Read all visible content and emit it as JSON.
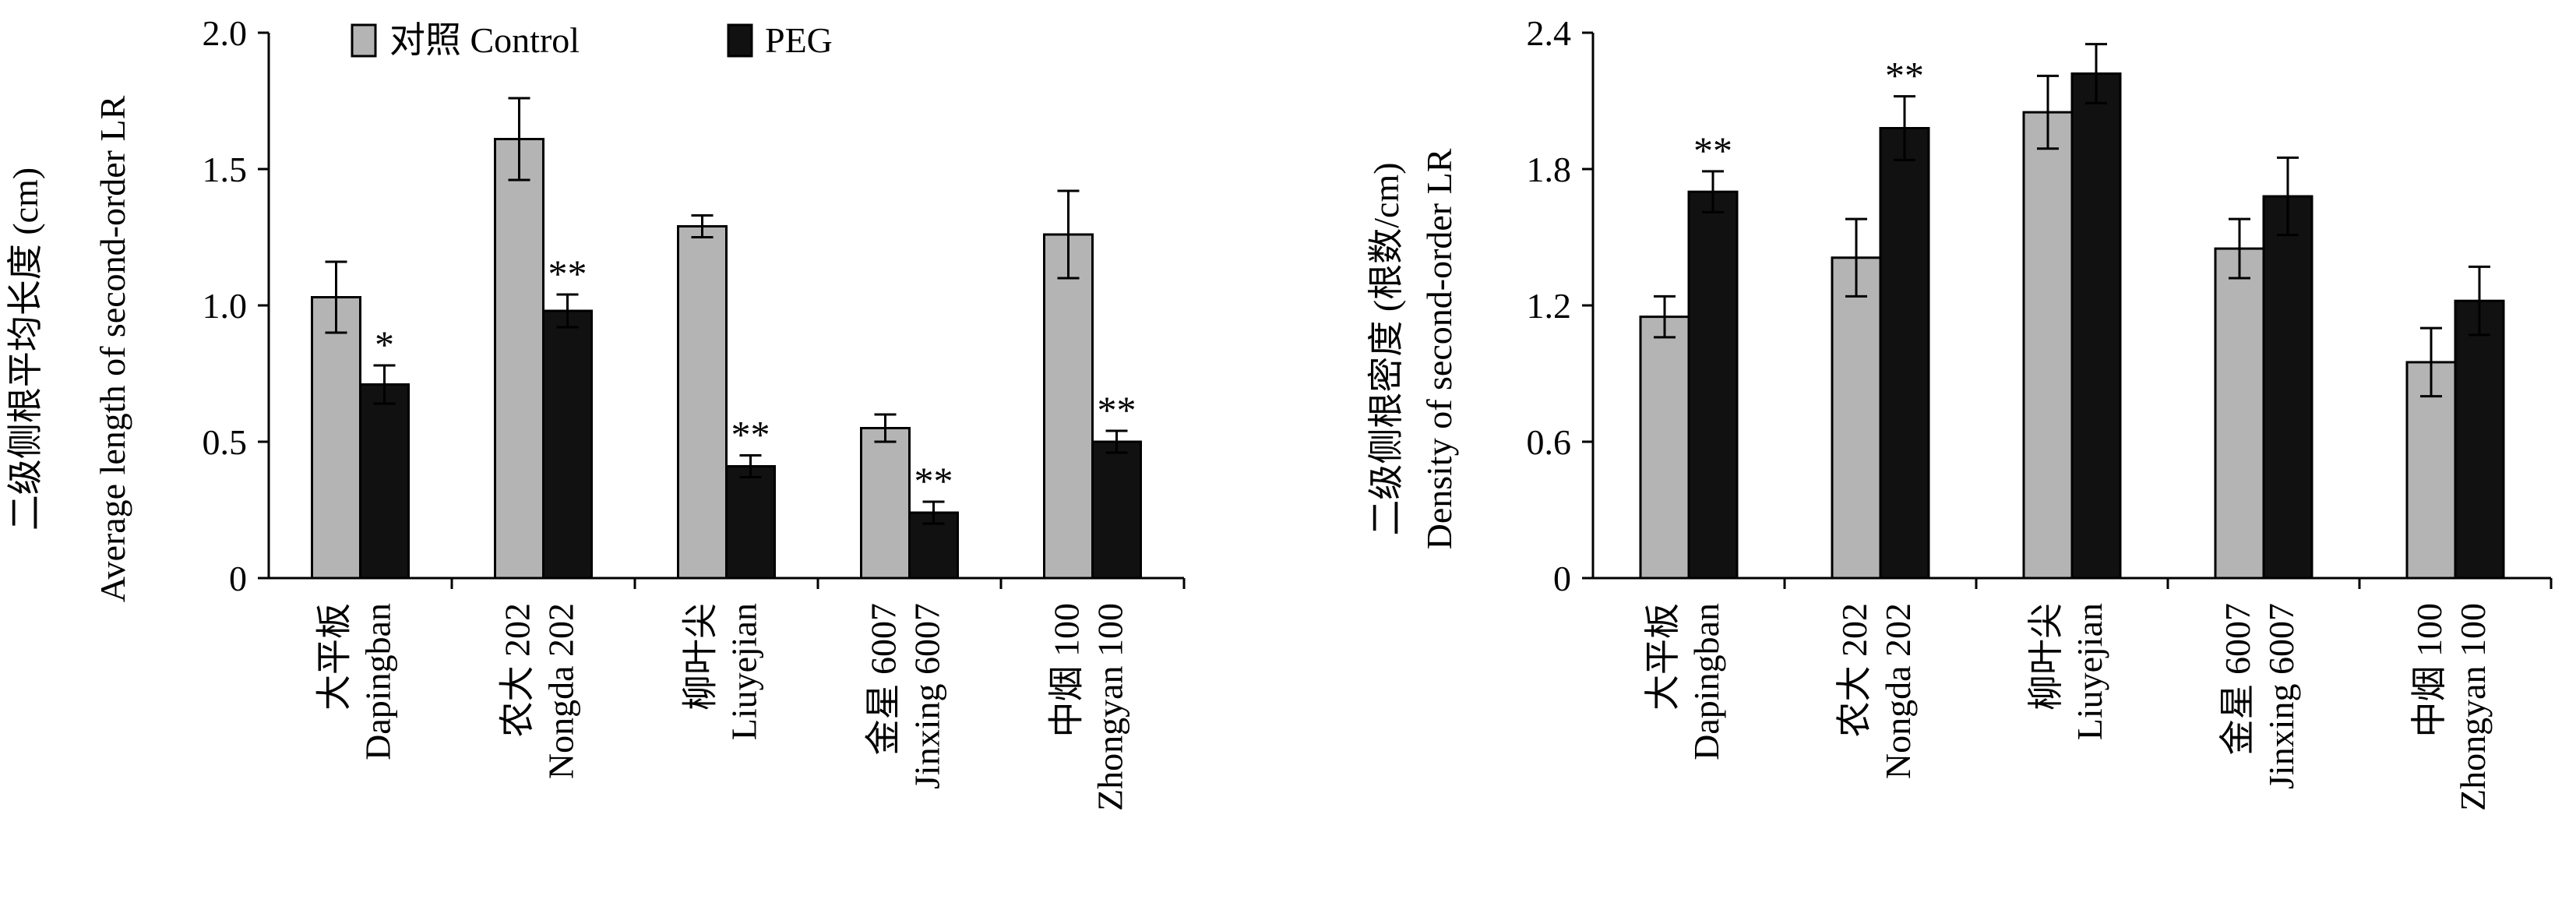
{
  "legend": {
    "control_label": "对照 Control",
    "peg_label": "PEG"
  },
  "colors": {
    "control": "#b4b4b4",
    "peg": "#111111",
    "axis": "#000000"
  },
  "chart_data": [
    {
      "type": "bar",
      "ylabel_cn": "二级侧根平均长度 (cm)",
      "ylabel_en": "Average length of second-order LR",
      "ylim": [
        0,
        2.0
      ],
      "yticks": [
        0,
        0.5,
        1.0,
        1.5,
        2.0
      ],
      "ytick_labels": [
        "0",
        "0.5",
        "1.0",
        "1.5",
        "2.0"
      ],
      "categories": [
        {
          "cn": "大平板",
          "en": "Dapingban"
        },
        {
          "cn": "农大 202",
          "en": "Nongda 202"
        },
        {
          "cn": "柳叶尖",
          "en": "Liuyejian"
        },
        {
          "cn": "金星 6007",
          "en": "Jinxing 6007"
        },
        {
          "cn": "中烟 100",
          "en": "Zhongyan 100"
        }
      ],
      "series": [
        {
          "name": "对照 Control",
          "values": [
            1.03,
            1.61,
            1.29,
            0.55,
            1.26
          ],
          "errors": [
            0.13,
            0.15,
            0.04,
            0.05,
            0.16
          ],
          "sig": [
            "",
            "",
            "",
            "",
            ""
          ]
        },
        {
          "name": "PEG",
          "values": [
            0.71,
            0.98,
            0.41,
            0.24,
            0.5
          ],
          "errors": [
            0.07,
            0.06,
            0.04,
            0.04,
            0.04
          ],
          "sig": [
            "*",
            "**",
            "**",
            "**",
            "**"
          ]
        }
      ]
    },
    {
      "type": "bar",
      "ylabel_cn": "二级侧根密度 (根数/cm)",
      "ylabel_en": "Density of second-order LR",
      "ylim": [
        0,
        2.4
      ],
      "yticks": [
        0,
        0.6,
        1.2,
        1.8,
        2.4
      ],
      "ytick_labels": [
        "0",
        "0.6",
        "1.2",
        "1.8",
        "2.4"
      ],
      "categories": [
        {
          "cn": "大平板",
          "en": "Dapingban"
        },
        {
          "cn": "农大 202",
          "en": "Nongda 202"
        },
        {
          "cn": "柳叶尖",
          "en": "Liuyejian"
        },
        {
          "cn": "金星 6007",
          "en": "Jinxing 6007"
        },
        {
          "cn": "中烟 100",
          "en": "Zhongyan 100"
        }
      ],
      "series": [
        {
          "name": "对照 Control",
          "values": [
            1.15,
            1.41,
            2.05,
            1.45,
            0.95
          ],
          "errors": [
            0.09,
            0.17,
            0.16,
            0.13,
            0.15
          ],
          "sig": [
            "",
            "",
            "",
            "",
            ""
          ]
        },
        {
          "name": "PEG",
          "values": [
            1.7,
            1.98,
            2.22,
            1.68,
            1.22
          ],
          "errors": [
            0.09,
            0.14,
            0.13,
            0.17,
            0.15
          ],
          "sig": [
            "**",
            "**",
            "",
            "",
            ""
          ]
        }
      ]
    }
  ]
}
